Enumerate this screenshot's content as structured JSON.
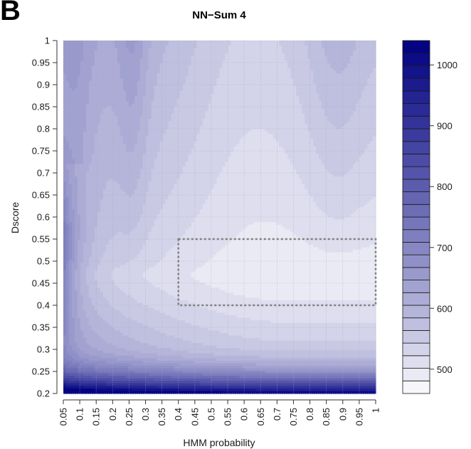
{
  "panel_letter": "B",
  "chart_data": {
    "type": "heatmap",
    "subtype": "filled-contour",
    "title": "NN−Sum 4",
    "xlabel": "HMM probability",
    "ylabel": "Dscore",
    "xlim": [
      0.05,
      1
    ],
    "ylim": [
      0.2,
      1
    ],
    "x_ticks": [
      "0.05",
      "0.1",
      "0.15",
      "0.2",
      "0.25",
      "0.3",
      "0.35",
      "0.4",
      "0.45",
      "0.5",
      "0.55",
      "0.6",
      "0.65",
      "0.7",
      "0.75",
      "0.8",
      "0.85",
      "0.9",
      "0.95",
      "1"
    ],
    "y_ticks": [
      "0.2",
      "0.25",
      "0.3",
      "0.35",
      "0.4",
      "0.45",
      "0.5",
      "0.55",
      "0.6",
      "0.65",
      "0.7",
      "0.75",
      "0.8",
      "0.85",
      "0.9",
      "0.95",
      "1"
    ],
    "grid": true,
    "colorbar": {
      "min": 460,
      "max": 1040,
      "levels": 28,
      "ticks": [
        "500",
        "600",
        "700",
        "800",
        "900",
        "1000"
      ],
      "color_low": "#ffffff",
      "color_high": "#000080"
    },
    "highlight_region": {
      "style": "dashed",
      "color": "#808080",
      "x": [
        0.4,
        1
      ],
      "y": [
        0.4,
        0.55
      ]
    },
    "value_summary": "Minimum (~480) at HMM probability 0.7–1 and Dscore 0.45–0.5; values rise steeply toward Dscore 0.2 (~1030) and mildly toward low HMM probability (~650) and toward Dscore 1 (~590–620)."
  }
}
